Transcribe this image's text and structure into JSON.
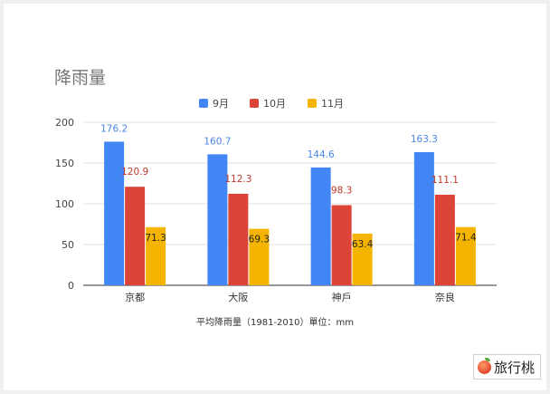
{
  "title": "降雨量",
  "footnote": "平均降雨量（1981-2010）單位：mm",
  "watermark": {
    "text": "旅行桃",
    "icon": "peach-icon"
  },
  "colors": {
    "series": [
      "#4285f4",
      "#db4437",
      "#f4b400"
    ],
    "label": [
      "#4a86e8",
      "#c0392b",
      "#222222"
    ]
  },
  "chart_data": {
    "type": "bar",
    "title": "降雨量",
    "xlabel": "平均降雨量（1981-2010）單位：mm",
    "ylabel": "",
    "categories": [
      "京都",
      "大阪",
      "神戶",
      "奈良"
    ],
    "series": [
      {
        "name": "9月",
        "values": [
          176.2,
          160.7,
          144.6,
          163.3
        ]
      },
      {
        "name": "10月",
        "values": [
          120.9,
          112.3,
          98.3,
          111.1
        ]
      },
      {
        "name": "11月",
        "values": [
          71.3,
          69.3,
          63.4,
          71.4
        ]
      }
    ],
    "ylim": [
      0,
      200
    ],
    "yticks": [
      0,
      50,
      100,
      150,
      200
    ],
    "grid": true,
    "legend": "top-center",
    "data_labels": true
  }
}
